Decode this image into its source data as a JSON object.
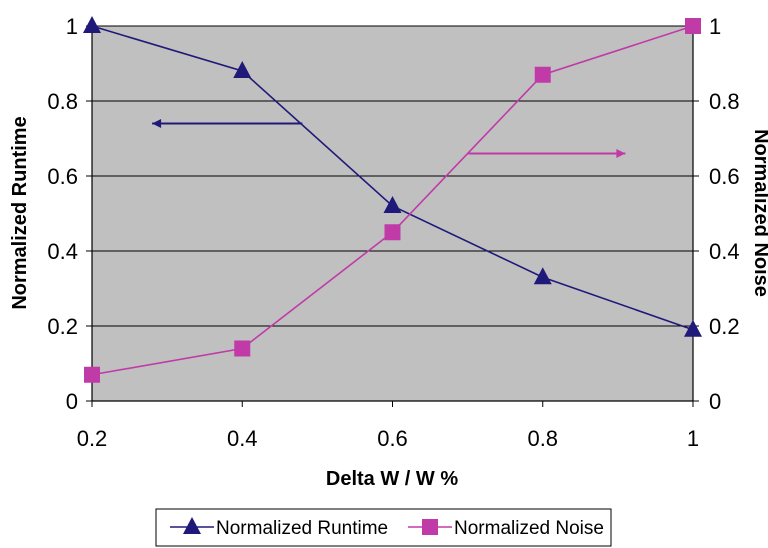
{
  "chart_data": {
    "type": "line",
    "xlabel": "Delta W / W %",
    "ylabel_left": "Normalized Runtime",
    "ylabel_right": "Normalized Noise",
    "x": [
      0.2,
      0.4,
      0.6,
      0.8,
      1
    ],
    "x_ticks": [
      "0.2",
      "0.4",
      "0.6",
      "0.8",
      "1"
    ],
    "y_ticks": [
      "0",
      "0.2",
      "0.4",
      "0.6",
      "0.8",
      "1"
    ],
    "xlim": [
      0.2,
      1
    ],
    "ylim_left": [
      0,
      1
    ],
    "ylim_right": [
      0,
      1
    ],
    "grid": true,
    "plot_background": "#c0c0c0",
    "legend_position": "bottom",
    "series": [
      {
        "name": "Normalized Runtime",
        "axis": "left",
        "marker": "triangle",
        "color": "#1f1a7a",
        "values": [
          1.0,
          0.88,
          0.52,
          0.33,
          0.19
        ]
      },
      {
        "name": "Normalized Noise",
        "axis": "right",
        "marker": "square",
        "color": "#c03aa8",
        "values": [
          0.07,
          0.14,
          0.45,
          0.87,
          1.0
        ]
      }
    ],
    "annotations": [
      {
        "type": "arrow",
        "direction": "left",
        "color": "#1f1a7a",
        "x_from": 0.48,
        "x_to": 0.28,
        "y": 0.74,
        "axis": "left"
      },
      {
        "type": "arrow",
        "direction": "right",
        "color": "#c03aa8",
        "x_from": 0.7,
        "x_to": 0.91,
        "y": 0.66,
        "axis": "right"
      }
    ]
  }
}
